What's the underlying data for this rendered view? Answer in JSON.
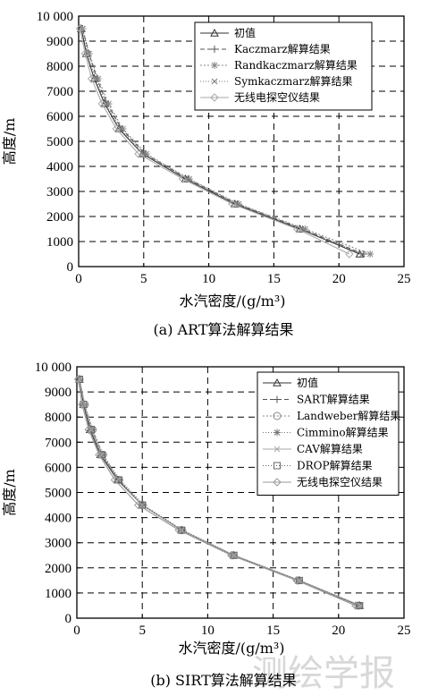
{
  "watermark": "测绘学报",
  "chart_data": [
    {
      "type": "line",
      "caption": "(a) ART算法解算结果",
      "xlabel": "水汽密度/(g/m³)",
      "ylabel": "高度/m",
      "xlim": [
        0,
        25
      ],
      "ylim": [
        0,
        10000
      ],
      "xticks": [
        "0",
        "5",
        "10",
        "15",
        "20",
        "25"
      ],
      "yticks": [
        "0",
        "1000",
        "2000",
        "3000",
        "4000",
        "5000",
        "6000",
        "7000",
        "8000",
        "9000",
        "10 000"
      ],
      "grid": "dashed",
      "legend_position": "top-right",
      "x": [
        500,
        1500,
        2500,
        3500,
        4500,
        5500,
        6500,
        7500,
        8500,
        9500
      ],
      "series": [
        {
          "name": "初值",
          "marker": "triangle",
          "values": [
            21.6,
            17.0,
            12.0,
            8.2,
            4.9,
            3.1,
            2.0,
            1.2,
            0.6,
            0.2
          ]
        },
        {
          "name": "Kaczmarz解算结果",
          "marker": "plus",
          "values": [
            21.9,
            17.2,
            12.2,
            8.4,
            5.1,
            3.3,
            2.2,
            1.4,
            0.8,
            0.3
          ]
        },
        {
          "name": "Randkaczmarz解算结果",
          "marker": "star",
          "values": [
            22.4,
            17.4,
            12.3,
            8.5,
            5.2,
            3.4,
            2.3,
            1.5,
            0.8,
            0.3
          ]
        },
        {
          "name": "Symkaczmarz解算结果",
          "marker": "cross",
          "values": [
            21.8,
            17.1,
            12.1,
            8.3,
            5.0,
            3.2,
            2.1,
            1.3,
            0.7,
            0.3
          ]
        },
        {
          "name": "无线电探空仪结果",
          "marker": "diamond",
          "values": [
            20.8,
            16.8,
            11.8,
            8.0,
            4.6,
            2.9,
            1.8,
            1.0,
            0.5,
            0.1
          ]
        }
      ]
    },
    {
      "type": "line",
      "caption": "(b) SIRT算法解算结果",
      "xlabel": "水汽密度/(g/m³)",
      "ylabel": "高度/m",
      "xlim": [
        0,
        25
      ],
      "ylim": [
        0,
        10000
      ],
      "xticks": [
        "0",
        "5",
        "10",
        "15",
        "20",
        "25"
      ],
      "yticks": [
        "0",
        "1000",
        "2000",
        "3000",
        "4000",
        "5000",
        "6000",
        "7000",
        "8000",
        "9000",
        "10 000"
      ],
      "grid": "dashed",
      "legend_position": "top-right",
      "x": [
        500,
        1500,
        2500,
        3500,
        4500,
        5500,
        6500,
        7500,
        8500,
        9500
      ],
      "series": [
        {
          "name": "初值",
          "marker": "triangle",
          "values": [
            21.6,
            17.0,
            12.0,
            8.0,
            5.0,
            3.1,
            1.8,
            1.0,
            0.5,
            0.2
          ]
        },
        {
          "name": "SART解算结果",
          "marker": "plus",
          "values": [
            21.6,
            17.0,
            12.0,
            8.0,
            5.0,
            3.2,
            1.9,
            1.1,
            0.5,
            0.2
          ]
        },
        {
          "name": "Landweber解算结果",
          "marker": "circle",
          "values": [
            21.5,
            16.9,
            11.9,
            8.0,
            5.0,
            3.2,
            2.0,
            1.2,
            0.6,
            0.2
          ]
        },
        {
          "name": "Cimmino解算结果",
          "marker": "star",
          "values": [
            21.6,
            17.0,
            12.0,
            8.1,
            5.1,
            3.3,
            2.0,
            1.2,
            0.6,
            0.2
          ]
        },
        {
          "name": "CAV解算结果",
          "marker": "cross",
          "values": [
            21.7,
            17.0,
            12.0,
            8.0,
            5.0,
            3.2,
            1.9,
            1.1,
            0.6,
            0.2
          ]
        },
        {
          "name": "DROP解算结果",
          "marker": "square",
          "values": [
            21.6,
            17.0,
            12.0,
            8.0,
            5.0,
            3.2,
            1.9,
            1.1,
            0.5,
            0.2
          ]
        },
        {
          "name": "无线电探空仪结果",
          "marker": "diamond",
          "values": [
            21.3,
            16.8,
            11.8,
            7.8,
            4.7,
            2.9,
            1.7,
            0.9,
            0.4,
            0.1
          ]
        }
      ]
    }
  ]
}
